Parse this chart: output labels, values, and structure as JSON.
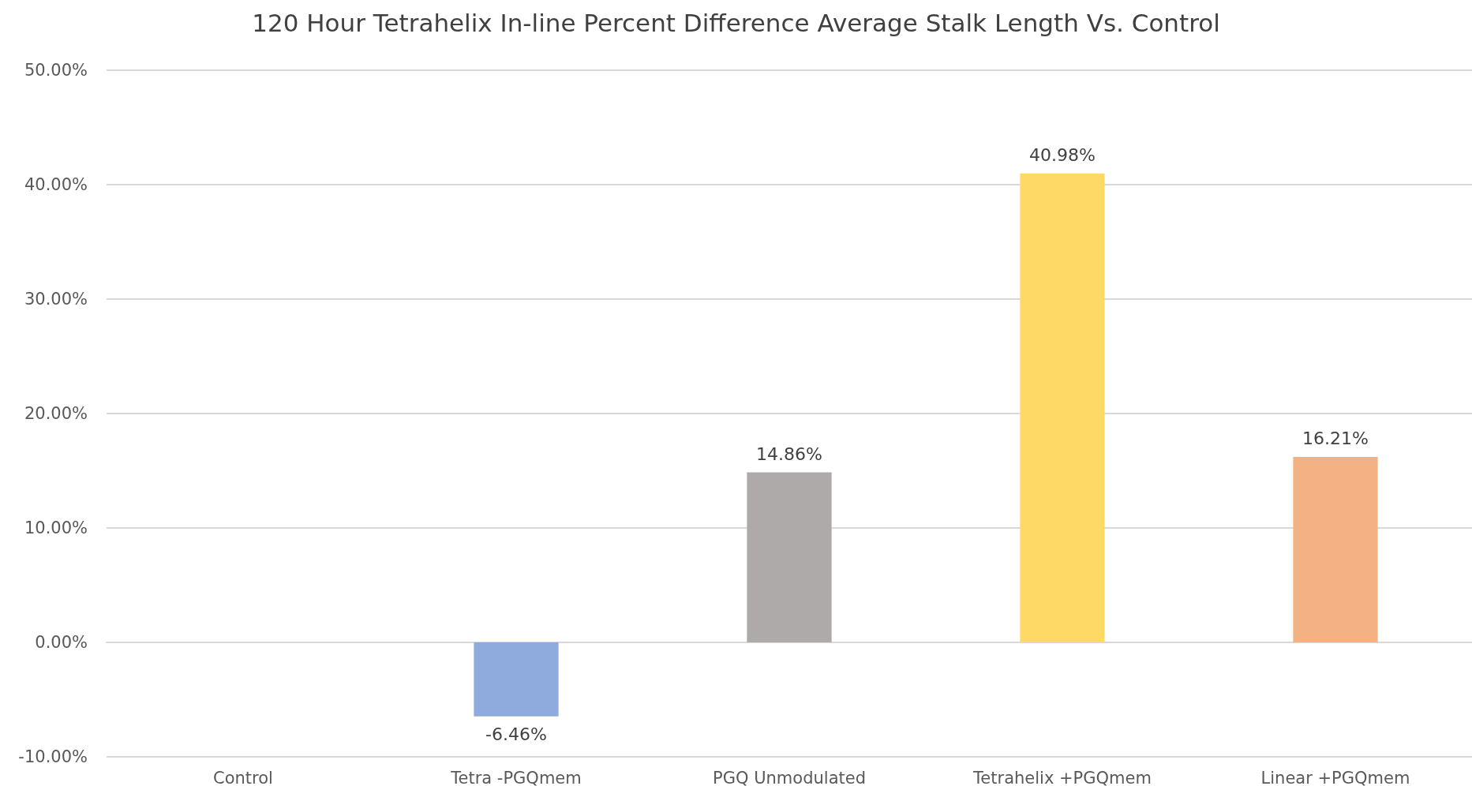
{
  "chart_data": {
    "type": "bar",
    "title": "120 Hour Tetrahelix In-line Percent Difference Average Stalk Length Vs. Control",
    "categories": [
      "Control",
      "Tetra -PGQmem",
      "PGQ Unmodulated",
      "Tetrahelix +PGQmem",
      "Linear +PGQmem"
    ],
    "values": [
      0,
      -6.46,
      14.86,
      40.98,
      16.21
    ],
    "colors": [
      "#5b9bd5",
      "#8faadc",
      "#aeaaaa",
      "#ffd966",
      "#f4b183"
    ],
    "value_labels": [
      null,
      "-6.46%",
      "14.86%",
      "40.98%",
      "16.21%"
    ],
    "ylim": [
      -10,
      50
    ],
    "yticks": [
      {
        "value": -10,
        "label": "-10.00%"
      },
      {
        "value": 0,
        "label": "0.00%"
      },
      {
        "value": 10,
        "label": "10.00%"
      },
      {
        "value": 20,
        "label": "20.00%"
      },
      {
        "value": 30,
        "label": "30.00%"
      },
      {
        "value": 40,
        "label": "40.00%"
      },
      {
        "value": 50,
        "label": "50.00%"
      }
    ],
    "grid": "y"
  }
}
